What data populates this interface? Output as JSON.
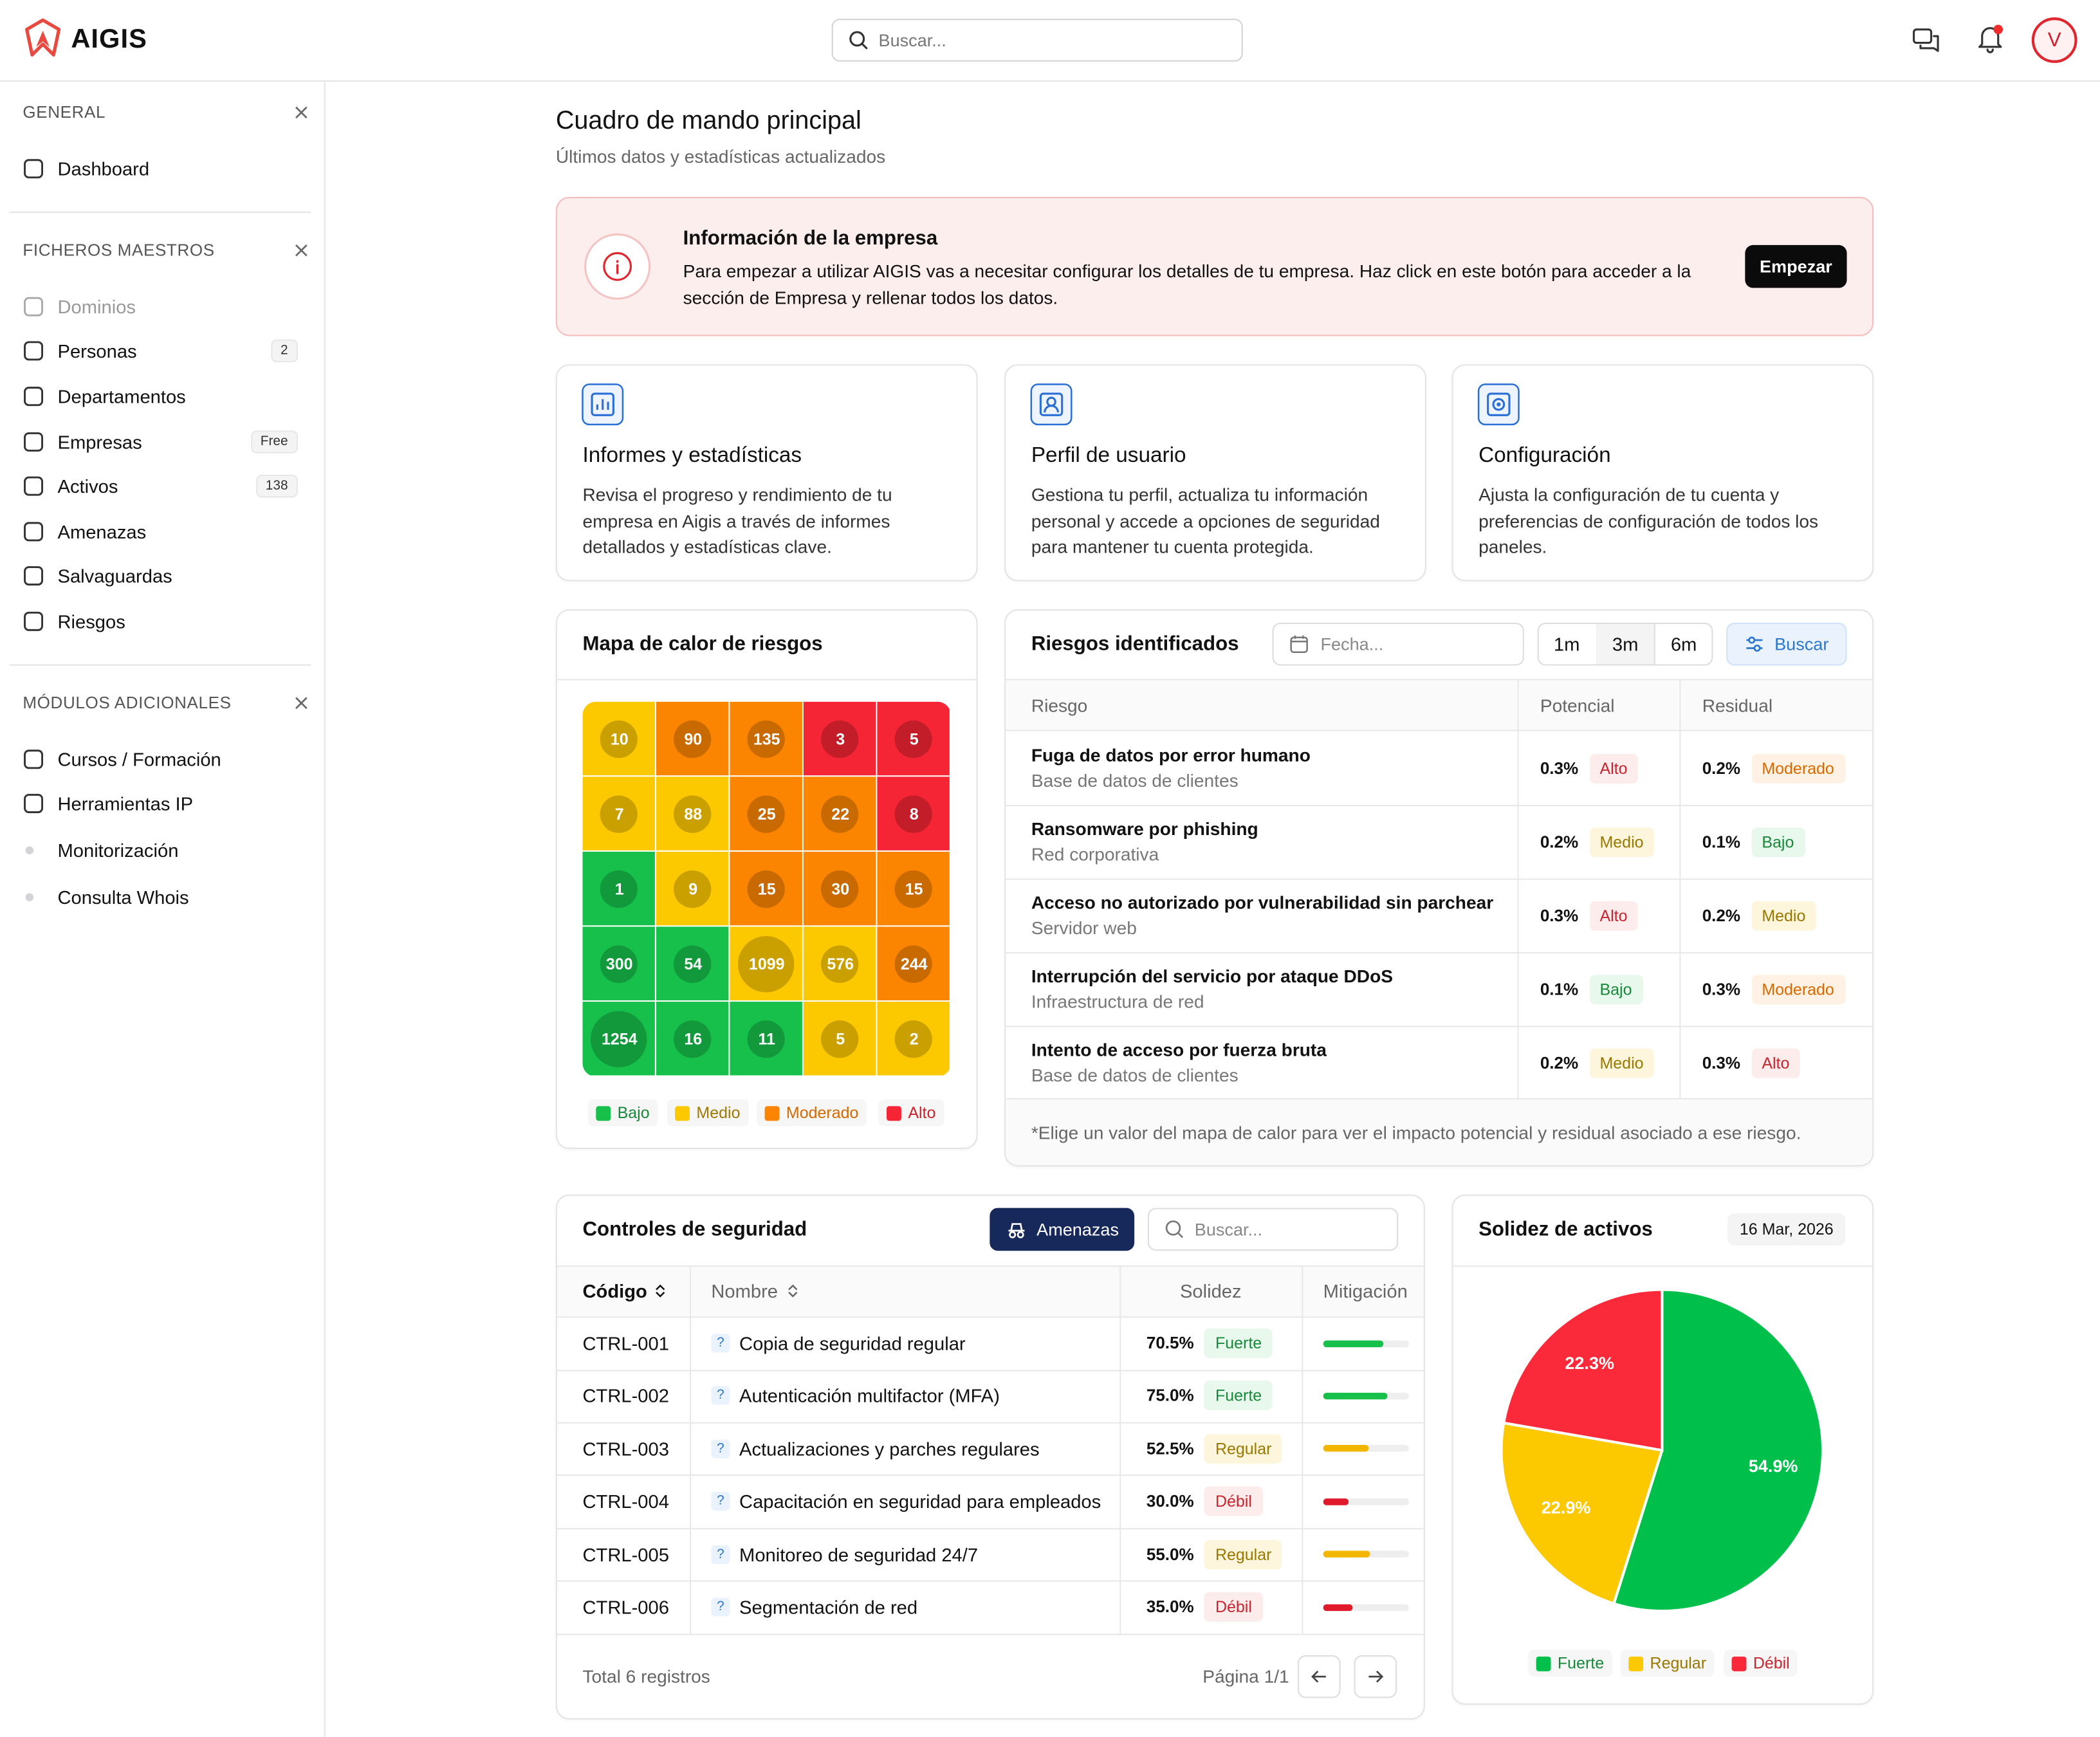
{
  "header": {
    "brand": "AIGIS",
    "search_placeholder": "Buscar...",
    "avatar": "V"
  },
  "sidebar": {
    "sections": [
      {
        "title": "GENERAL",
        "items": [
          {
            "label": "Dashboard"
          }
        ]
      },
      {
        "title": "FICHEROS MAESTROS",
        "items": [
          {
            "label": "Dominios",
            "disabled": true
          },
          {
            "label": "Personas",
            "badge": "2"
          },
          {
            "label": "Departamentos"
          },
          {
            "label": "Empresas",
            "badge": "Free"
          },
          {
            "label": "Activos",
            "badge": "138"
          },
          {
            "label": "Amenazas"
          },
          {
            "label": "Salvaguardas"
          },
          {
            "label": "Riesgos"
          }
        ]
      },
      {
        "title": "MÓDULOS ADICIONALES",
        "items": [
          {
            "label": "Cursos / Formación"
          },
          {
            "label": "Herramientas IP"
          },
          {
            "label": "Monitorización",
            "sub": true
          },
          {
            "label": "Consulta Whois",
            "sub": true
          }
        ]
      }
    ]
  },
  "page": {
    "title": "Cuadro de mando principal",
    "subtitle": "Últimos datos y estadísticas actualizados"
  },
  "banner": {
    "title": "Información de la empresa",
    "text": "Para empezar a utilizar AIGIS vas a necesitar configurar los detalles de tu empresa. Haz click en este botón para acceder a la sección de Empresa y rellenar todos los datos.",
    "button": "Empezar"
  },
  "cards": [
    {
      "title": "Informes y estadísticas",
      "text": "Revisa el progreso y rendimiento de tu empresa en Aigis a través de informes detallados y estadísticas clave."
    },
    {
      "title": "Perfil de usuario",
      "text": "Gestiona tu perfil, actualiza tu información personal y accede a opciones de seguridad para mantener tu cuenta protegida."
    },
    {
      "title": "Configuración",
      "text": "Ajusta la configuración de tu cuenta y preferencias de configuración de todos los paneles."
    }
  ],
  "heatmap": {
    "title": "Mapa de calor de riesgos",
    "rows": [
      [
        10,
        90,
        135,
        3,
        5
      ],
      [
        7,
        88,
        25,
        22,
        8
      ],
      [
        1,
        9,
        15,
        30,
        15
      ],
      [
        300,
        54,
        1099,
        576,
        244
      ],
      [
        1254,
        16,
        11,
        5,
        2
      ]
    ],
    "levels": [
      [
        1,
        2,
        2,
        3,
        3
      ],
      [
        1,
        1,
        2,
        2,
        3
      ],
      [
        0,
        1,
        2,
        2,
        2
      ],
      [
        0,
        0,
        1,
        1,
        2
      ],
      [
        0,
        0,
        0,
        1,
        1
      ]
    ],
    "legend": [
      {
        "label": "Bajo",
        "color": "#16c04a"
      },
      {
        "label": "Medio",
        "color": "#fcc800"
      },
      {
        "label": "Moderado",
        "color": "#fb8500"
      },
      {
        "label": "Alto",
        "color": "#f52535"
      }
    ]
  },
  "risks": {
    "title": "Riesgos identificados",
    "date_placeholder": "Fecha...",
    "ranges": [
      "1m",
      "3m",
      "6m"
    ],
    "search": "Buscar",
    "columns": [
      "Riesgo",
      "Potencial",
      "Residual"
    ],
    "rows": [
      {
        "name": "Fuga de datos por error humano",
        "asset": "Base de datos de clientes",
        "potential": "0.3%",
        "potential_tag": "Alto",
        "potential_tone": "red",
        "residual": "0.2%",
        "residual_tag": "Moderado",
        "residual_tone": "orange"
      },
      {
        "name": "Ransomware por phishing",
        "asset": "Red corporativa",
        "potential": "0.2%",
        "potential_tag": "Medio",
        "potential_tone": "yellow",
        "residual": "0.1%",
        "residual_tag": "Bajo",
        "residual_tone": "green"
      },
      {
        "name": "Acceso no autorizado por vulnerabilidad sin parchear",
        "asset": "Servidor web",
        "potential": "0.3%",
        "potential_tag": "Alto",
        "potential_tone": "red",
        "residual": "0.2%",
        "residual_tag": "Medio",
        "residual_tone": "yellow"
      },
      {
        "name": "Interrupción del servicio por ataque DDoS",
        "asset": "Infraestructura de red",
        "potential": "0.1%",
        "potential_tag": "Bajo",
        "potential_tone": "green",
        "residual": "0.3%",
        "residual_tag": "Moderado",
        "residual_tone": "orange"
      },
      {
        "name": "Intento de acceso por fuerza bruta",
        "asset": "Base de datos de clientes",
        "potential": "0.2%",
        "potential_tag": "Medio",
        "potential_tone": "yellow",
        "residual": "0.3%",
        "residual_tag": "Alto",
        "residual_tone": "red"
      }
    ],
    "note": "*Elige un valor del mapa de calor para ver el impacto potencial y residual asociado a ese riesgo."
  },
  "controls": {
    "title": "Controles de seguridad",
    "button": "Amenazas",
    "search": "Buscar...",
    "help": "?",
    "columns": [
      "Código",
      "Nombre",
      "Solidez",
      "Mitigación"
    ],
    "rows": [
      {
        "code": "CTRL-001",
        "name": "Copia de seguridad regular",
        "solidez": 70.5,
        "solidez_label": "70.5%",
        "tag": "Fuerte",
        "tone": "green"
      },
      {
        "code": "CTRL-002",
        "name": "Autenticación multifactor (MFA)",
        "solidez": 75.0,
        "solidez_label": "75.0%",
        "tag": "Fuerte",
        "tone": "green"
      },
      {
        "code": "CTRL-003",
        "name": "Actualizaciones y parches regulares",
        "solidez": 52.5,
        "solidez_label": "52.5%",
        "tag": "Regular",
        "tone": "yellow"
      },
      {
        "code": "CTRL-004",
        "name": "Capacitación en seguridad para empleados",
        "solidez": 30.0,
        "solidez_label": "30.0%",
        "tag": "Débil",
        "tone": "red"
      },
      {
        "code": "CTRL-005",
        "name": "Monitoreo de seguridad 24/7",
        "solidez": 55.0,
        "solidez_label": "55.0%",
        "tag": "Regular",
        "tone": "yellow"
      },
      {
        "code": "CTRL-006",
        "name": "Segmentación de red",
        "solidez": 35.0,
        "solidez_label": "35.0%",
        "tag": "Débil",
        "tone": "red"
      }
    ],
    "total": "Total 6 registros",
    "page": "Página 1/1"
  },
  "pie": {
    "type": "pie",
    "title": "Solidez de activos",
    "date": "16 Mar, 2026",
    "labels": [
      "Fuerte",
      "Regular",
      "Débil"
    ],
    "values": [
      54.9,
      22.9,
      22.3
    ],
    "value_labels": [
      "54.9%",
      "22.9%",
      "22.3%"
    ],
    "colors": [
      "#00c04b",
      "#fcc800",
      "#fa2a3a"
    ]
  }
}
